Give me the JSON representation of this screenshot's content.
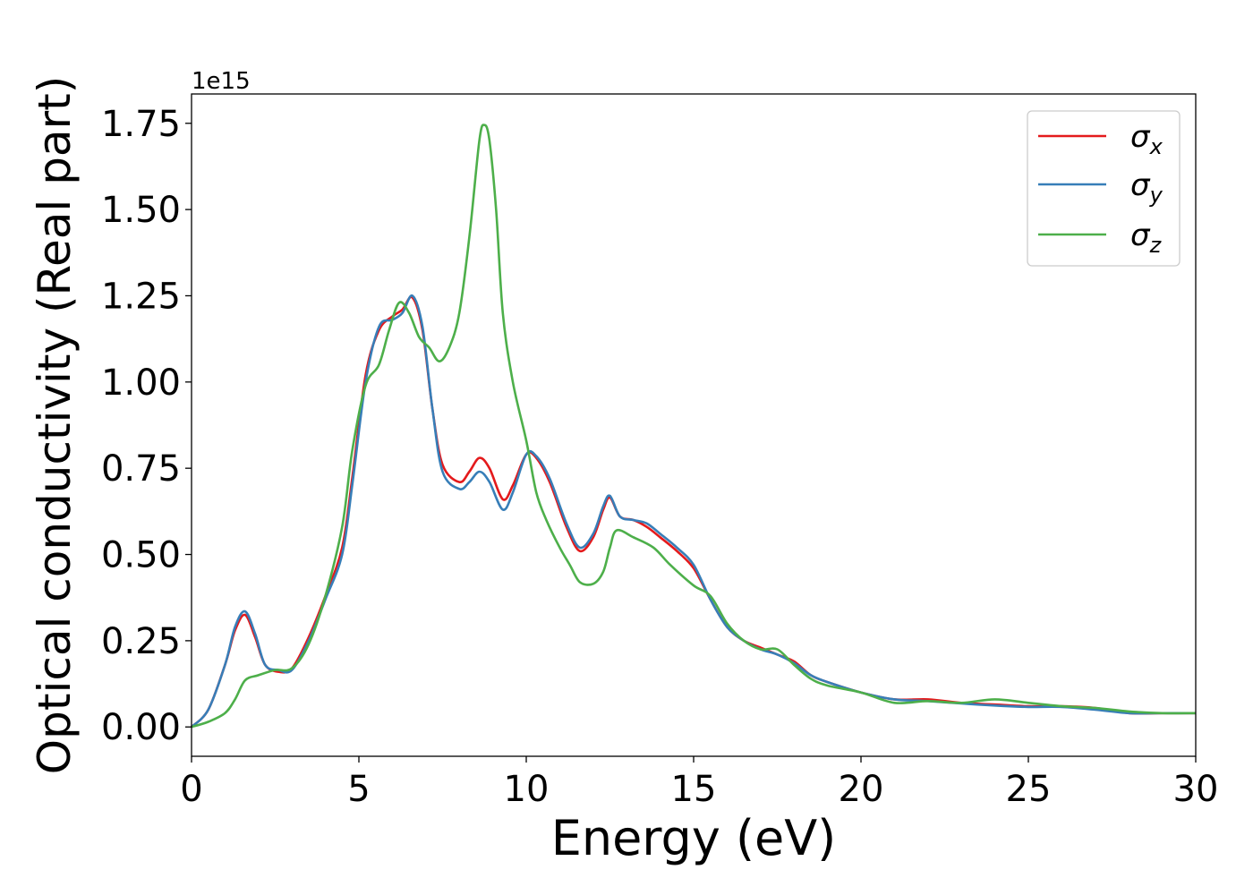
{
  "chart_data": {
    "type": "line",
    "title": "",
    "xlabel": "Energy (eV)",
    "ylabel": "Optical conductivity (Real part)",
    "y_offset_text": "1e15",
    "y_scale": 1000000000000000.0,
    "xlim": [
      0,
      30
    ],
    "ylim": [
      -0.085,
      1.835
    ],
    "xticks": [
      0,
      5,
      10,
      15,
      20,
      25,
      30
    ],
    "xtick_labels": [
      "0",
      "5",
      "10",
      "15",
      "20",
      "25",
      "30"
    ],
    "yticks": [
      0.0,
      0.25,
      0.5,
      0.75,
      1.0,
      1.25,
      1.5,
      1.75
    ],
    "ytick_labels": [
      "0.00",
      "0.25",
      "0.50",
      "0.75",
      "1.00",
      "1.25",
      "1.50",
      "1.75"
    ],
    "grid": false,
    "legend_position": "top-right",
    "series": [
      {
        "name": "σx",
        "legend_base": "σ",
        "legend_sub": "x",
        "color": "#e41a1c",
        "points": [
          [
            0,
            0
          ],
          [
            0.5,
            0.05
          ],
          [
            1.0,
            0.18
          ],
          [
            1.3,
            0.28
          ],
          [
            1.6,
            0.325
          ],
          [
            1.9,
            0.26
          ],
          [
            2.2,
            0.18
          ],
          [
            2.6,
            0.16
          ],
          [
            3.0,
            0.17
          ],
          [
            3.5,
            0.26
          ],
          [
            4.0,
            0.38
          ],
          [
            4.5,
            0.52
          ],
          [
            4.8,
            0.72
          ],
          [
            5.2,
            1.02
          ],
          [
            5.6,
            1.15
          ],
          [
            6.0,
            1.19
          ],
          [
            6.3,
            1.21
          ],
          [
            6.6,
            1.245
          ],
          [
            6.9,
            1.15
          ],
          [
            7.2,
            0.92
          ],
          [
            7.5,
            0.76
          ],
          [
            8.0,
            0.71
          ],
          [
            8.3,
            0.74
          ],
          [
            8.6,
            0.78
          ],
          [
            8.9,
            0.75
          ],
          [
            9.3,
            0.66
          ],
          [
            9.6,
            0.7
          ],
          [
            10.0,
            0.79
          ],
          [
            10.3,
            0.78
          ],
          [
            10.7,
            0.71
          ],
          [
            11.2,
            0.58
          ],
          [
            11.6,
            0.51
          ],
          [
            12.0,
            0.55
          ],
          [
            12.3,
            0.63
          ],
          [
            12.5,
            0.665
          ],
          [
            12.8,
            0.61
          ],
          [
            13.2,
            0.6
          ],
          [
            13.6,
            0.58
          ],
          [
            14.0,
            0.55
          ],
          [
            14.5,
            0.51
          ],
          [
            15.0,
            0.46
          ],
          [
            15.5,
            0.37
          ],
          [
            16.0,
            0.29
          ],
          [
            16.5,
            0.25
          ],
          [
            17.0,
            0.23
          ],
          [
            17.5,
            0.21
          ],
          [
            18.0,
            0.19
          ],
          [
            18.5,
            0.15
          ],
          [
            19.0,
            0.13
          ],
          [
            20.0,
            0.1
          ],
          [
            21.0,
            0.08
          ],
          [
            22.0,
            0.08
          ],
          [
            23.0,
            0.07
          ],
          [
            24.0,
            0.065
          ],
          [
            25.0,
            0.06
          ],
          [
            26.0,
            0.06
          ],
          [
            27.0,
            0.055
          ],
          [
            28.0,
            0.04
          ],
          [
            29.0,
            0.04
          ],
          [
            30.0,
            0.04
          ]
        ]
      },
      {
        "name": "σy",
        "legend_base": "σ",
        "legend_sub": "y",
        "color": "#377eb8",
        "points": [
          [
            0,
            0
          ],
          [
            0.5,
            0.05
          ],
          [
            1.0,
            0.18
          ],
          [
            1.3,
            0.29
          ],
          [
            1.6,
            0.335
          ],
          [
            1.9,
            0.27
          ],
          [
            2.2,
            0.18
          ],
          [
            2.6,
            0.165
          ],
          [
            3.0,
            0.165
          ],
          [
            3.5,
            0.25
          ],
          [
            4.0,
            0.37
          ],
          [
            4.5,
            0.5
          ],
          [
            4.8,
            0.7
          ],
          [
            5.2,
            1.0
          ],
          [
            5.6,
            1.16
          ],
          [
            6.0,
            1.18
          ],
          [
            6.3,
            1.2
          ],
          [
            6.6,
            1.25
          ],
          [
            6.9,
            1.16
          ],
          [
            7.2,
            0.92
          ],
          [
            7.5,
            0.74
          ],
          [
            8.0,
            0.69
          ],
          [
            8.3,
            0.71
          ],
          [
            8.6,
            0.74
          ],
          [
            8.9,
            0.71
          ],
          [
            9.3,
            0.63
          ],
          [
            9.6,
            0.68
          ],
          [
            10.0,
            0.79
          ],
          [
            10.3,
            0.785
          ],
          [
            10.7,
            0.72
          ],
          [
            11.2,
            0.59
          ],
          [
            11.6,
            0.52
          ],
          [
            12.0,
            0.56
          ],
          [
            12.3,
            0.64
          ],
          [
            12.5,
            0.67
          ],
          [
            12.8,
            0.61
          ],
          [
            13.2,
            0.6
          ],
          [
            13.6,
            0.59
          ],
          [
            14.0,
            0.56
          ],
          [
            14.5,
            0.52
          ],
          [
            15.0,
            0.47
          ],
          [
            15.5,
            0.37
          ],
          [
            16.0,
            0.29
          ],
          [
            16.5,
            0.25
          ],
          [
            17.0,
            0.225
          ],
          [
            17.5,
            0.21
          ],
          [
            18.0,
            0.185
          ],
          [
            18.5,
            0.15
          ],
          [
            19.0,
            0.13
          ],
          [
            20.0,
            0.1
          ],
          [
            21.0,
            0.08
          ],
          [
            22.0,
            0.075
          ],
          [
            23.0,
            0.068
          ],
          [
            24.0,
            0.062
          ],
          [
            25.0,
            0.058
          ],
          [
            26.0,
            0.058
          ],
          [
            27.0,
            0.05
          ],
          [
            28.0,
            0.04
          ],
          [
            29.0,
            0.04
          ],
          [
            30.0,
            0.04
          ]
        ]
      },
      {
        "name": "σz",
        "legend_base": "σ",
        "legend_sub": "z",
        "color": "#4daf4a",
        "points": [
          [
            0,
            0
          ],
          [
            0.5,
            0.015
          ],
          [
            1.0,
            0.04
          ],
          [
            1.3,
            0.08
          ],
          [
            1.6,
            0.135
          ],
          [
            2.0,
            0.15
          ],
          [
            2.5,
            0.165
          ],
          [
            3.0,
            0.17
          ],
          [
            3.5,
            0.24
          ],
          [
            4.0,
            0.38
          ],
          [
            4.5,
            0.58
          ],
          [
            4.8,
            0.8
          ],
          [
            5.2,
            0.99
          ],
          [
            5.6,
            1.05
          ],
          [
            5.9,
            1.15
          ],
          [
            6.2,
            1.23
          ],
          [
            6.5,
            1.2
          ],
          [
            6.8,
            1.13
          ],
          [
            7.1,
            1.1
          ],
          [
            7.4,
            1.06
          ],
          [
            7.7,
            1.1
          ],
          [
            8.0,
            1.2
          ],
          [
            8.3,
            1.42
          ],
          [
            8.6,
            1.7
          ],
          [
            8.75,
            1.745
          ],
          [
            8.9,
            1.7
          ],
          [
            9.1,
            1.5
          ],
          [
            9.3,
            1.2
          ],
          [
            9.6,
            1.0
          ],
          [
            10.0,
            0.83
          ],
          [
            10.3,
            0.68
          ],
          [
            10.6,
            0.6
          ],
          [
            11.0,
            0.52
          ],
          [
            11.3,
            0.47
          ],
          [
            11.6,
            0.42
          ],
          [
            12.0,
            0.415
          ],
          [
            12.3,
            0.45
          ],
          [
            12.5,
            0.52
          ],
          [
            12.7,
            0.57
          ],
          [
            13.2,
            0.55
          ],
          [
            13.8,
            0.52
          ],
          [
            14.3,
            0.47
          ],
          [
            15.0,
            0.41
          ],
          [
            15.5,
            0.38
          ],
          [
            16.0,
            0.3
          ],
          [
            16.5,
            0.25
          ],
          [
            17.0,
            0.225
          ],
          [
            17.5,
            0.225
          ],
          [
            18.0,
            0.18
          ],
          [
            18.5,
            0.14
          ],
          [
            19.0,
            0.12
          ],
          [
            20.0,
            0.1
          ],
          [
            21.0,
            0.07
          ],
          [
            22.0,
            0.075
          ],
          [
            23.0,
            0.07
          ],
          [
            24.0,
            0.08
          ],
          [
            25.0,
            0.07
          ],
          [
            26.0,
            0.06
          ],
          [
            27.0,
            0.055
          ],
          [
            28.0,
            0.045
          ],
          [
            29.0,
            0.04
          ],
          [
            30.0,
            0.04
          ]
        ]
      }
    ]
  }
}
